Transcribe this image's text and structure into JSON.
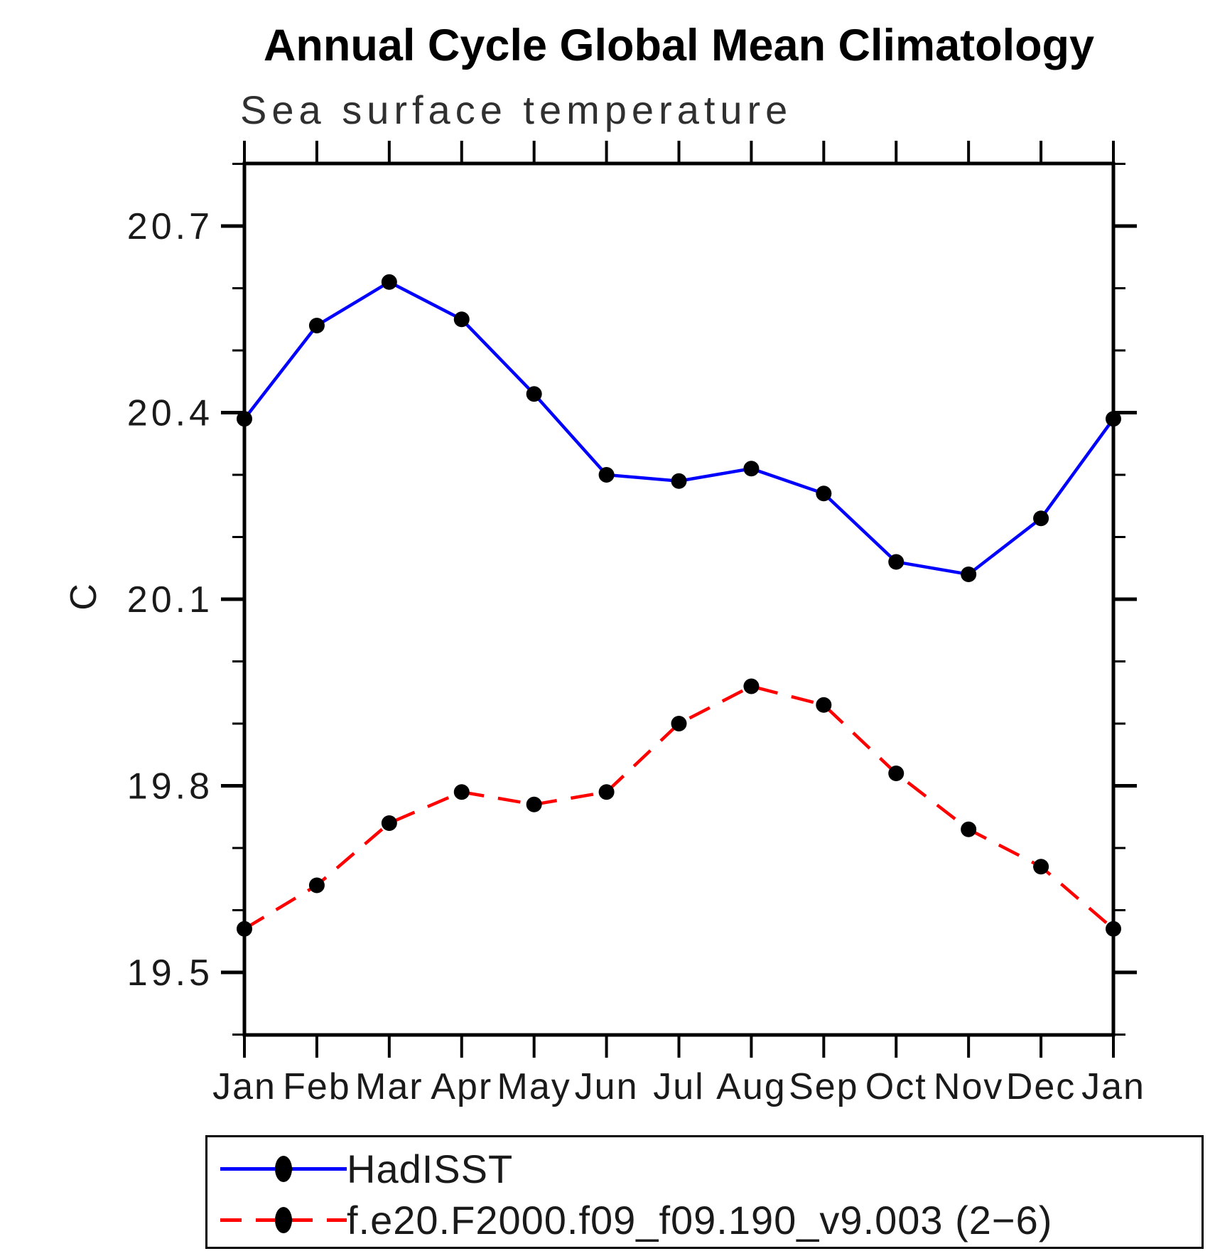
{
  "header": {
    "title": "Annual Cycle Global Mean Climatology",
    "subtitle": "Sea surface temperature"
  },
  "chart_data": {
    "type": "line",
    "title": "Annual Cycle Global Mean Climatology",
    "subtitle": "Sea surface temperature",
    "xlabel": "",
    "ylabel": "C",
    "categories": [
      "Jan",
      "Feb",
      "Mar",
      "Apr",
      "May",
      "Jun",
      "Jul",
      "Aug",
      "Sep",
      "Oct",
      "Nov",
      "Dec",
      "Jan"
    ],
    "series": [
      {
        "name": "HadISST",
        "color": "#0000ff",
        "line_style": "solid",
        "marker": "filled-circle",
        "marker_color": "#000000",
        "values": [
          20.39,
          20.54,
          20.61,
          20.55,
          20.43,
          20.3,
          20.29,
          20.31,
          20.27,
          20.16,
          20.14,
          20.23,
          20.39
        ]
      },
      {
        "name": "f.e20.F2000.f09_f09.190_v9.003 (2−6)",
        "color": "#ff0000",
        "line_style": "dashed",
        "marker": "filled-circle",
        "marker_color": "#000000",
        "values": [
          19.57,
          19.64,
          19.74,
          19.79,
          19.77,
          19.79,
          19.9,
          19.96,
          19.93,
          19.82,
          19.73,
          19.67,
          19.57
        ]
      }
    ],
    "ylim": [
      19.4,
      20.8
    ],
    "yticks": [
      20.7,
      20.4,
      20.1,
      19.8,
      19.5
    ],
    "yticks_minor": [
      20.8,
      20.6,
      20.5,
      20.3,
      20.2,
      20.0,
      19.9,
      19.7,
      19.6,
      19.4
    ],
    "y_tick_decimals": 1,
    "grid": false,
    "legend_position": "bottom",
    "axis_color": "#000000",
    "tick_label_color": "#1a1a1a"
  }
}
